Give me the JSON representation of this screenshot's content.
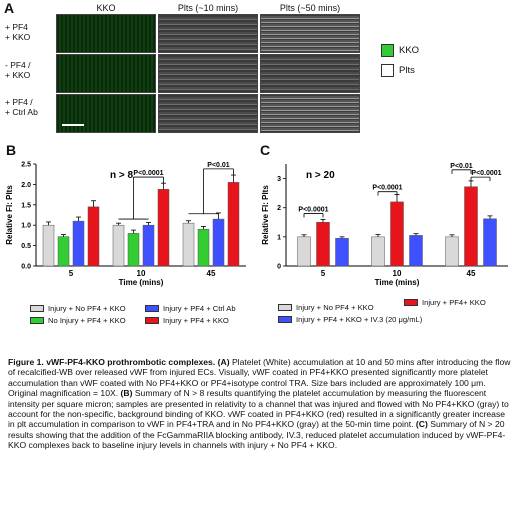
{
  "panelA": {
    "letter": "A",
    "col_headers": [
      "KKO",
      "Plts (~10 mins)",
      "Plts (~50 mins)"
    ],
    "row_labels": [
      [
        "+ PF4",
        "+ KKO"
      ],
      [
        "- PF4 /",
        "+ KKO"
      ],
      [
        "+ PF4 /",
        "+ Ctrl Ab"
      ]
    ],
    "legend": [
      {
        "label": "KKO",
        "color": "#33cc33"
      },
      {
        "label": "Plts",
        "color": "#ffffff"
      }
    ]
  },
  "panelB": {
    "letter": "B",
    "n_label": "n > 8",
    "ylabel": "Relative FI: Plts",
    "xlabel": "Time (mins)",
    "yticks": [
      "0.0",
      "0.5",
      "1.0",
      "1.5",
      "2.0",
      "2.5"
    ],
    "pvals": [
      "P<0.0001",
      "P<0.01"
    ],
    "legend": [
      {
        "label": "Injury + No PF4 + KKO",
        "color": "#d9d9d9"
      },
      {
        "label": "Injury + PF4 + Ctrl Ab",
        "color": "#3f51ff"
      },
      {
        "label": "No Injury + PF4 + KKO",
        "color": "#33cc33"
      },
      {
        "label": "Injury + PF4 + KKO",
        "color": "#e8141b"
      }
    ]
  },
  "panelC": {
    "letter": "C",
    "n_label": "n > 20",
    "ylabel": "Relative FI: Plts",
    "xlabel": "Time (mins)",
    "yticks": [
      "0",
      "1",
      "2",
      "3"
    ],
    "pvals": [
      "P<0.0001",
      "P<0.0001",
      "P<0.01",
      "P<0.0001"
    ],
    "legend": [
      {
        "label": "Injury + No PF4 + KKO",
        "color": "#d9d9d9"
      },
      {
        "label": "Injury + PF4+ KKO",
        "color": "#e8141b"
      },
      {
        "label": "Injury + PF4 + KKO + IV.3 (20 μg/mL)",
        "color": "#3f51ff"
      }
    ]
  },
  "chart_data": [
    {
      "type": "bar",
      "categories": [
        "5",
        "10",
        "45"
      ],
      "xlabel": "Time (mins)",
      "ylabel": "Relative FI: Plts",
      "ylim": [
        0,
        2.5
      ],
      "series": [
        {
          "name": "Injury + No PF4 + KKO",
          "values": [
            1.0,
            1.0,
            1.05
          ],
          "color": "#d9d9d9"
        },
        {
          "name": "No Injury + PF4 + KKO",
          "values": [
            0.72,
            0.8,
            0.9
          ],
          "color": "#33cc33"
        },
        {
          "name": "Injury + PF4 + Ctrl Ab",
          "values": [
            1.1,
            1.0,
            1.15
          ],
          "color": "#3f51ff"
        },
        {
          "name": "Injury + PF4 + KKO",
          "values": [
            1.45,
            1.88,
            2.05
          ],
          "color": "#e8141b"
        }
      ],
      "errors": [
        [
          0.08,
          0.05,
          0.06
        ],
        [
          0.05,
          0.08,
          0.07
        ],
        [
          0.1,
          0.07,
          0.15
        ],
        [
          0.15,
          0.15,
          0.18
        ]
      ]
    },
    {
      "type": "bar",
      "categories": [
        "5",
        "10",
        "45"
      ],
      "xlabel": "Time (mins)",
      "ylabel": "Relative FI: Plts",
      "ylim": [
        0,
        3.5
      ],
      "series": [
        {
          "name": "Injury + No PF4 + KKO",
          "values": [
            1.0,
            1.0,
            1.0
          ],
          "color": "#d9d9d9"
        },
        {
          "name": "Injury + PF4+ KKO",
          "values": [
            1.5,
            2.2,
            2.72
          ],
          "color": "#e8141b"
        },
        {
          "name": "Injury + PF4 + KKO + IV.3 (20 μg/mL)",
          "values": [
            0.95,
            1.05,
            1.62
          ],
          "color": "#3f51ff"
        }
      ],
      "errors": [
        [
          0.07,
          0.08,
          0.07
        ],
        [
          0.1,
          0.25,
          0.2
        ],
        [
          0.05,
          0.06,
          0.1
        ]
      ]
    }
  ],
  "caption": {
    "title": "Figure 1. vWF-PF4-KKO prothrombotic complexes.",
    "text_A_label": "(A)",
    "text_A": " Platelet (White) accumulation at 10 and 50 mins after introducing the flow of recalcified-WB over released vWF from injured ECs. Visually, vWF coated in PF4+KKO presented significantly more platelet accumulation than vWF coated with No PF4+KKO or PF4+isotype control TRA. Size bars included are approximately 100 μm. Original magnification = 10X. ",
    "text_B_label": "(B)",
    "text_B": " Summary of N > 8 results quantifying the platelet accumulation by measuring the fluorescent intensity per square micron; samples are presented in relativity to a channel that was injured and flowed with No PF4+KKO (gray) to account for the non-specific, background binding of KKO. vWF coated in PF4+KKO (red) resulted in a significantly greater increase in plt accumulation in comparison to vWF in PF4+TRA and in No PF4+KKO (gray) at the 50-min time point. ",
    "text_C_label": "(C)",
    "text_C": " Summary of N > 20 results showing that the addition of the FcGammaRIIA blocking antibody, IV.3, reduced platelet accumulation induced by vWF-PF4-KKO complexes back to baseline injury levels in channels with injury + No PF4 + KKO."
  }
}
